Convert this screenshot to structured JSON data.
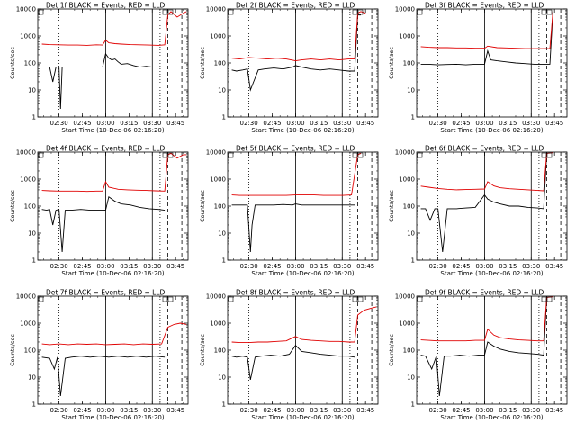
{
  "colors": {
    "events": "#000000",
    "lld": "#e00000",
    "axis": "#000000",
    "background": "#ffffff"
  },
  "common": {
    "ylabel": "Counts/sec",
    "xlabel": "Start Time (10-Dec-06 02:16:20)",
    "xticks": [
      "02:30",
      "02:45",
      "03:00",
      "03:15",
      "03:30",
      "03:45"
    ],
    "yticks": [
      "1",
      "10",
      "100",
      "1000",
      "10000"
    ]
  },
  "chart_data": [
    {
      "type": "line",
      "title": "Det 1f BLACK = Events, RED = LLD",
      "xlabel": "Start Time (10-Dec-06 02:16:20)",
      "ylabel": "Counts/sec",
      "y_scale": "log",
      "ylim": [
        1,
        10000
      ],
      "xlim": [
        "02:16:20",
        "03:53:00"
      ],
      "series": [
        {
          "name": "Events",
          "color": "#000000",
          "x": [
            "02:19",
            "02:21",
            "02:22",
            "02:24",
            "02:26",
            "02:28",
            "02:30",
            "02:31",
            "02:32",
            "02:34",
            "02:36",
            "02:40",
            "02:44",
            "02:48",
            "02:52",
            "02:56",
            "02:58",
            "03:00",
            "03:02",
            "03:04",
            "03:06",
            "03:08",
            "03:10",
            "03:14",
            "03:18",
            "03:22",
            "03:26",
            "03:30",
            "03:36",
            "03:38"
          ],
          "values": [
            70,
            70,
            70,
            70,
            20,
            70,
            70,
            2,
            70,
            70,
            70,
            70,
            70,
            70,
            70,
            70,
            70,
            220,
            150,
            130,
            140,
            110,
            90,
            95,
            80,
            70,
            75,
            70,
            70,
            70
          ]
        },
        {
          "name": "LLD",
          "color": "#e00000",
          "x": [
            "02:19",
            "02:24",
            "02:30",
            "02:36",
            "02:42",
            "02:48",
            "02:54",
            "02:58",
            "03:00",
            "03:02",
            "03:06",
            "03:10",
            "03:16",
            "03:22",
            "03:28",
            "03:34",
            "03:38",
            "03:40",
            "03:42",
            "03:46",
            "03:50",
            "03:52"
          ],
          "values": [
            500,
            480,
            470,
            460,
            460,
            450,
            470,
            460,
            700,
            560,
            520,
            500,
            480,
            470,
            460,
            450,
            470,
            6000,
            8000,
            5000,
            7000,
            8000
          ]
        }
      ]
    },
    {
      "type": "line",
      "title": "Det 2f BLACK = Events, RED = LLD",
      "xlabel": "Start Time (10-Dec-06 02:16:20)",
      "ylabel": "Counts/sec",
      "y_scale": "log",
      "ylim": [
        1,
        10000
      ],
      "xlim": [
        "02:16:20",
        "03:53:00"
      ],
      "series": [
        {
          "name": "Events",
          "color": "#000000",
          "x": [
            "02:19",
            "02:22",
            "02:26",
            "02:29",
            "02:31",
            "02:33",
            "02:36",
            "02:40",
            "02:46",
            "02:52",
            "02:58",
            "03:00",
            "03:04",
            "03:10",
            "03:16",
            "03:22",
            "03:28",
            "03:34",
            "03:38",
            "03:40",
            "03:42"
          ],
          "values": [
            55,
            50,
            55,
            60,
            10,
            20,
            55,
            60,
            65,
            60,
            70,
            80,
            70,
            60,
            55,
            60,
            55,
            50,
            50,
            6000,
            6000
          ]
        },
        {
          "name": "LLD",
          "color": "#e00000",
          "x": [
            "02:19",
            "02:24",
            "02:30",
            "02:36",
            "02:42",
            "02:48",
            "02:54",
            "03:00",
            "03:04",
            "03:10",
            "03:16",
            "03:22",
            "03:28",
            "03:34",
            "03:38",
            "03:40",
            "03:42",
            "03:45"
          ],
          "values": [
            150,
            140,
            160,
            150,
            140,
            150,
            140,
            120,
            130,
            140,
            130,
            140,
            130,
            140,
            140,
            7000,
            8000,
            7000
          ]
        }
      ]
    },
    {
      "type": "line",
      "title": "Det 3f BLACK = Events, RED = LLD",
      "xlabel": "Start Time (10-Dec-06 02:16:20)",
      "ylabel": "Counts/sec",
      "y_scale": "log",
      "ylim": [
        1,
        10000
      ],
      "xlim": [
        "02:16:20",
        "03:53:00"
      ],
      "series": [
        {
          "name": "Events",
          "color": "#000000",
          "x": [
            "02:19",
            "02:24",
            "02:30",
            "02:36",
            "02:42",
            "02:48",
            "02:54",
            "03:00",
            "03:02",
            "03:04",
            "03:08",
            "03:14",
            "03:20",
            "03:26",
            "03:32",
            "03:38",
            "03:42",
            "03:44"
          ],
          "values": [
            90,
            90,
            85,
            88,
            90,
            85,
            90,
            90,
            280,
            130,
            120,
            110,
            100,
            95,
            90,
            90,
            90,
            9000
          ]
        },
        {
          "name": "LLD",
          "color": "#e00000",
          "x": [
            "02:19",
            "02:24",
            "02:30",
            "02:36",
            "02:42",
            "02:48",
            "02:54",
            "03:00",
            "03:02",
            "03:08",
            "03:14",
            "03:20",
            "03:26",
            "03:32",
            "03:38",
            "03:42",
            "03:44"
          ],
          "values": [
            400,
            380,
            370,
            370,
            360,
            360,
            350,
            350,
            420,
            370,
            360,
            350,
            340,
            340,
            340,
            340,
            9000
          ]
        }
      ]
    },
    {
      "type": "line",
      "title": "Det 4f BLACK = Events, RED = LLD",
      "xlabel": "Start Time (10-Dec-06 02:16:20)",
      "ylabel": "Counts/sec",
      "y_scale": "log",
      "ylim": [
        1,
        10000
      ],
      "xlim": [
        "02:16:20",
        "03:53:00"
      ],
      "series": [
        {
          "name": "Events",
          "color": "#000000",
          "x": [
            "02:19",
            "02:22",
            "02:24",
            "02:26",
            "02:28",
            "02:30",
            "02:32",
            "02:34",
            "02:38",
            "02:44",
            "02:50",
            "02:56",
            "03:00",
            "03:02",
            "03:06",
            "03:10",
            "03:16",
            "03:22",
            "03:28",
            "03:34",
            "03:38"
          ],
          "values": [
            75,
            70,
            75,
            20,
            70,
            75,
            2,
            70,
            70,
            75,
            70,
            70,
            70,
            220,
            150,
            120,
            110,
            90,
            80,
            75,
            70
          ]
        },
        {
          "name": "LLD",
          "color": "#e00000",
          "x": [
            "02:19",
            "02:24",
            "02:30",
            "02:36",
            "02:42",
            "02:48",
            "02:54",
            "02:58",
            "03:00",
            "03:02",
            "03:08",
            "03:14",
            "03:20",
            "03:26",
            "03:32",
            "03:38",
            "03:40",
            "03:42",
            "03:46",
            "03:50",
            "03:52"
          ],
          "values": [
            380,
            370,
            360,
            360,
            360,
            350,
            360,
            360,
            800,
            500,
            420,
            400,
            390,
            380,
            370,
            360,
            8000,
            9000,
            6000,
            8000,
            8000
          ]
        }
      ]
    },
    {
      "type": "line",
      "title": "Det 5f BLACK = Events, RED = LLD",
      "xlabel": "Start Time (10-Dec-06 02:16:20)",
      "ylabel": "Counts/sec",
      "y_scale": "log",
      "ylim": [
        1,
        10000
      ],
      "xlim": [
        "02:16:20",
        "03:53:00"
      ],
      "series": [
        {
          "name": "Events",
          "color": "#000000",
          "x": [
            "02:19",
            "02:22",
            "02:26",
            "02:29",
            "02:31",
            "02:32",
            "02:34",
            "02:40",
            "02:46",
            "02:52",
            "02:58",
            "03:00",
            "03:04",
            "03:10",
            "03:16",
            "03:22",
            "03:28",
            "03:34",
            "03:38"
          ],
          "values": [
            110,
            110,
            110,
            110,
            2,
            20,
            110,
            110,
            110,
            115,
            110,
            120,
            110,
            110,
            110,
            110,
            110,
            110,
            110
          ]
        },
        {
          "name": "LLD",
          "color": "#e00000",
          "x": [
            "02:19",
            "02:24",
            "02:30",
            "02:36",
            "02:42",
            "02:48",
            "02:54",
            "03:00",
            "03:06",
            "03:12",
            "03:18",
            "03:24",
            "03:30",
            "03:36",
            "03:40",
            "03:42"
          ],
          "values": [
            260,
            250,
            250,
            250,
            250,
            250,
            250,
            260,
            260,
            260,
            250,
            250,
            250,
            260,
            8000,
            9000
          ]
        }
      ]
    },
    {
      "type": "line",
      "title": "Det 6f BLACK = Events, RED = LLD",
      "xlabel": "Start Time (10-Dec-06 02:16:20)",
      "ylabel": "Counts/sec",
      "y_scale": "log",
      "ylim": [
        1,
        10000
      ],
      "xlim": [
        "02:16:20",
        "03:53:00"
      ],
      "series": [
        {
          "name": "Events",
          "color": "#000000",
          "x": [
            "02:19",
            "02:22",
            "02:25",
            "02:28",
            "02:30",
            "02:33",
            "02:36",
            "02:42",
            "02:48",
            "02:54",
            "03:00",
            "03:02",
            "03:06",
            "03:10",
            "03:16",
            "03:22",
            "03:28",
            "03:34",
            "03:38",
            "03:40"
          ],
          "values": [
            80,
            80,
            30,
            80,
            80,
            2,
            80,
            80,
            85,
            90,
            260,
            180,
            140,
            120,
            100,
            100,
            90,
            85,
            80,
            9000
          ]
        },
        {
          "name": "LLD",
          "color": "#e00000",
          "x": [
            "02:19",
            "02:24",
            "02:30",
            "02:36",
            "02:42",
            "02:48",
            "02:54",
            "03:00",
            "03:02",
            "03:06",
            "03:10",
            "03:16",
            "03:22",
            "03:28",
            "03:34",
            "03:38",
            "03:40",
            "03:44"
          ],
          "values": [
            550,
            500,
            450,
            420,
            400,
            410,
            420,
            430,
            800,
            560,
            480,
            440,
            420,
            400,
            380,
            370,
            9000,
            9500
          ]
        }
      ]
    },
    {
      "type": "line",
      "title": "Det 7f BLACK = Events, RED = LLD",
      "xlabel": "Start Time (10-Dec-06 02:16:20)",
      "ylabel": "Counts/sec",
      "y_scale": "log",
      "ylim": [
        1,
        10000
      ],
      "xlim": [
        "02:16:20",
        "03:53:00"
      ],
      "series": [
        {
          "name": "Events",
          "color": "#000000",
          "x": [
            "02:19",
            "02:24",
            "02:27",
            "02:29",
            "02:31",
            "02:34",
            "02:38",
            "02:44",
            "02:50",
            "02:56",
            "03:02",
            "03:08",
            "03:14",
            "03:20",
            "03:26",
            "03:32",
            "03:38"
          ],
          "values": [
            55,
            50,
            20,
            55,
            2,
            50,
            55,
            60,
            55,
            60,
            55,
            60,
            55,
            60,
            55,
            60,
            55
          ]
        },
        {
          "name": "LLD",
          "color": "#e00000",
          "x": [
            "02:19",
            "02:24",
            "02:30",
            "02:36",
            "02:42",
            "02:48",
            "02:54",
            "03:00",
            "03:06",
            "03:12",
            "03:18",
            "03:24",
            "03:30",
            "03:36",
            "03:40",
            "03:44",
            "03:48",
            "03:52"
          ],
          "values": [
            170,
            160,
            170,
            160,
            170,
            165,
            170,
            160,
            165,
            170,
            160,
            170,
            165,
            170,
            700,
            900,
            1000,
            900
          ]
        }
      ]
    },
    {
      "type": "line",
      "title": "Det 8f BLACK = Events, RED = LLD",
      "xlabel": "Start Time (10-Dec-06 02:16:20)",
      "ylabel": "Counts/sec",
      "y_scale": "log",
      "ylim": [
        1,
        10000
      ],
      "xlim": [
        "02:16:20",
        "03:53:00"
      ],
      "series": [
        {
          "name": "Events",
          "color": "#000000",
          "x": [
            "02:19",
            "02:22",
            "02:26",
            "02:29",
            "02:31",
            "02:34",
            "02:38",
            "02:44",
            "02:50",
            "02:56",
            "03:00",
            "03:04",
            "03:10",
            "03:16",
            "03:22",
            "03:28",
            "03:34",
            "03:38"
          ],
          "values": [
            60,
            55,
            60,
            55,
            8,
            55,
            60,
            65,
            60,
            70,
            150,
            90,
            80,
            70,
            65,
            60,
            60,
            55
          ]
        },
        {
          "name": "LLD",
          "color": "#e00000",
          "x": [
            "02:19",
            "02:24",
            "02:30",
            "02:36",
            "02:42",
            "02:48",
            "02:54",
            "03:00",
            "03:04",
            "03:10",
            "03:16",
            "03:22",
            "03:28",
            "03:34",
            "03:38",
            "03:40",
            "03:44",
            "03:48",
            "03:52"
          ],
          "values": [
            200,
            190,
            190,
            200,
            200,
            210,
            220,
            320,
            250,
            230,
            220,
            210,
            210,
            200,
            200,
            2000,
            3000,
            3500,
            4000
          ]
        }
      ]
    },
    {
      "type": "line",
      "title": "Det 9f BLACK = Events, RED = LLD",
      "xlabel": "Start Time (10-Dec-06 02:16:20)",
      "ylabel": "Counts/sec",
      "y_scale": "log",
      "ylim": [
        1,
        10000
      ],
      "xlim": [
        "02:16:20",
        "03:53:00"
      ],
      "series": [
        {
          "name": "Events",
          "color": "#000000",
          "x": [
            "02:19",
            "02:22",
            "02:26",
            "02:29",
            "02:31",
            "02:34",
            "02:38",
            "02:44",
            "02:50",
            "02:56",
            "03:00",
            "03:02",
            "03:06",
            "03:10",
            "03:16",
            "03:22",
            "03:28",
            "03:34",
            "03:38",
            "03:40"
          ],
          "values": [
            65,
            60,
            20,
            60,
            2,
            60,
            60,
            65,
            60,
            65,
            65,
            200,
            140,
            110,
            90,
            80,
            75,
            70,
            65,
            9000
          ]
        },
        {
          "name": "LLD",
          "color": "#e00000",
          "x": [
            "02:19",
            "02:24",
            "02:30",
            "02:36",
            "02:42",
            "02:48",
            "02:54",
            "03:00",
            "03:02",
            "03:06",
            "03:10",
            "03:16",
            "03:22",
            "03:28",
            "03:34",
            "03:38",
            "03:40",
            "03:44"
          ],
          "values": [
            240,
            230,
            220,
            220,
            220,
            220,
            230,
            230,
            600,
            360,
            290,
            260,
            240,
            230,
            220,
            220,
            9000,
            9500
          ]
        }
      ]
    }
  ]
}
